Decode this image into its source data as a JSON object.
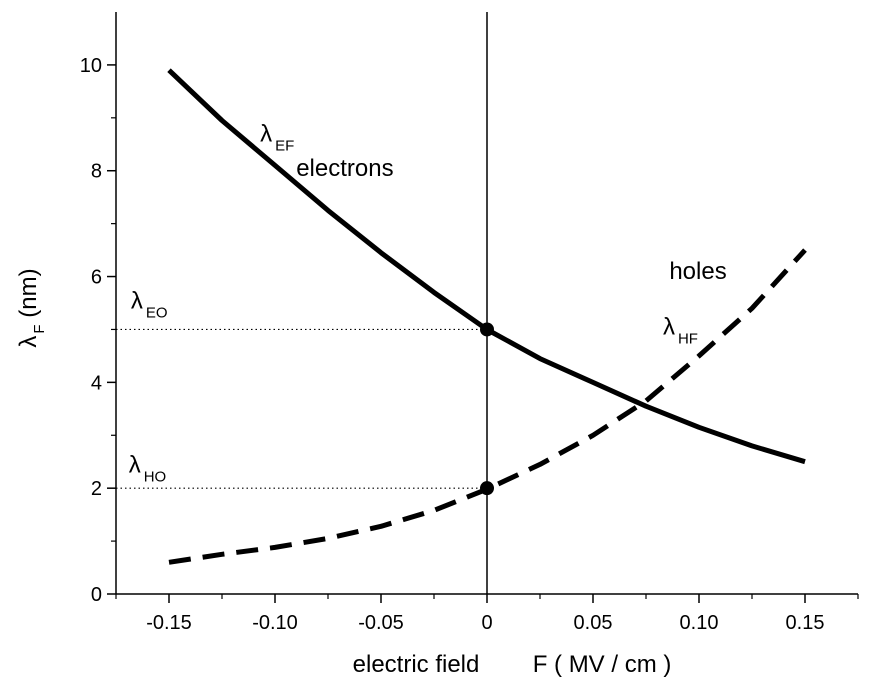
{
  "chart_data": {
    "type": "line",
    "xlabel": "electric field        F ( MV / cm )",
    "ylabel": {
      "symbol": "λ",
      "sub": "F",
      "unit": " (nm)"
    },
    "xlim": [
      -0.175,
      0.175
    ],
    "ylim": [
      0,
      11
    ],
    "xticks": [
      {
        "value": -0.15,
        "label": "-0.15"
      },
      {
        "value": -0.1,
        "label": "-0.10"
      },
      {
        "value": -0.05,
        "label": "-0.05"
      },
      {
        "value": 0,
        "label": "0"
      },
      {
        "value": 0.05,
        "label": "0.05"
      },
      {
        "value": 0.1,
        "label": "0.10"
      },
      {
        "value": 0.15,
        "label": "0.15"
      }
    ],
    "yticks": [
      {
        "value": 0,
        "label": "0"
      },
      {
        "value": 2,
        "label": "2"
      },
      {
        "value": 4,
        "label": "4"
      },
      {
        "value": 6,
        "label": "6"
      },
      {
        "value": 8,
        "label": "8"
      },
      {
        "value": 10,
        "label": "10"
      }
    ],
    "grid": false,
    "vertical_line_x": 0,
    "series": [
      {
        "name": "electrons",
        "style": "solid",
        "color": "#000000",
        "x": [
          -0.15,
          -0.125,
          -0.1,
          -0.075,
          -0.05,
          -0.025,
          0,
          0.025,
          0.05,
          0.075,
          0.1,
          0.125,
          0.15
        ],
        "y": [
          9.9,
          8.95,
          8.1,
          7.25,
          6.45,
          5.7,
          5.0,
          4.45,
          4.0,
          3.55,
          3.15,
          2.8,
          2.5
        ]
      },
      {
        "name": "holes",
        "style": "dashed",
        "color": "#000000",
        "x": [
          -0.15,
          -0.125,
          -0.1,
          -0.075,
          -0.05,
          -0.025,
          0,
          0.025,
          0.05,
          0.075,
          0.1,
          0.125,
          0.15
        ],
        "y": [
          0.6,
          0.75,
          0.88,
          1.05,
          1.28,
          1.58,
          1.98,
          2.45,
          3.0,
          3.65,
          4.5,
          5.4,
          6.5
        ]
      }
    ],
    "points": [
      {
        "x": 0,
        "y": 5.0
      },
      {
        "x": 0,
        "y": 2.0
      }
    ],
    "reference_lines": [
      {
        "y": 5.0,
        "style": "dotted"
      },
      {
        "y": 2.0,
        "style": "dotted"
      }
    ],
    "annotations": [
      {
        "id": "lambda-ef",
        "symbol": "λ",
        "sub": "EF",
        "x": -0.107,
        "y": 8.55
      },
      {
        "id": "electrons",
        "text": "electrons",
        "x": -0.09,
        "y": 7.9
      },
      {
        "id": "lambda-eo",
        "symbol": "λ",
        "sub": "EO",
        "x": -0.168,
        "y": 5.4
      },
      {
        "id": "lambda-ho",
        "symbol": "λ",
        "sub": "HO",
        "x": -0.169,
        "y": 2.3
      },
      {
        "id": "holes",
        "text": "holes",
        "x": 0.086,
        "y": 5.95
      },
      {
        "id": "lambda-hf",
        "symbol": "λ",
        "sub": "HF",
        "x": 0.083,
        "y": 4.9
      }
    ]
  }
}
